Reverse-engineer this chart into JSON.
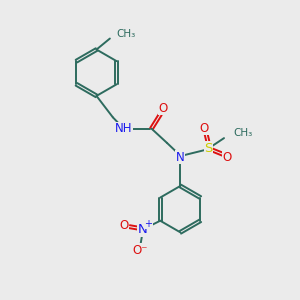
{
  "bg_color": "#ebebeb",
  "bond_color": "#2d6b5e",
  "N_color": "#1a1aee",
  "O_color": "#dd1111",
  "S_color": "#cccc00",
  "figsize": [
    3.0,
    3.0
  ],
  "dpi": 100,
  "xlim": [
    0,
    10
  ],
  "ylim": [
    0,
    10
  ]
}
